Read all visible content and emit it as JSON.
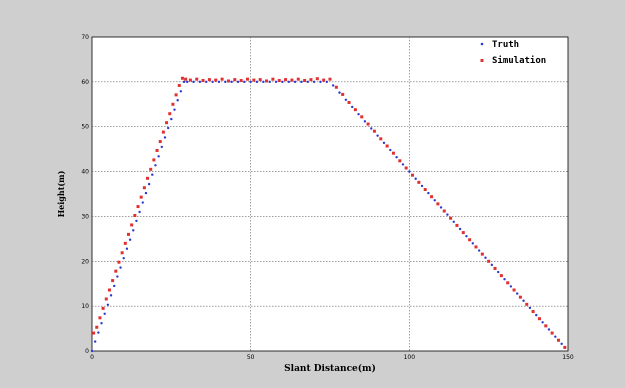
{
  "chart_data": {
    "type": "scatter",
    "title": "",
    "xlabel": "Slant Distance(m)",
    "ylabel": "Height(m)",
    "xlim": [
      0,
      150
    ],
    "ylim": [
      0,
      70
    ],
    "xticks": [
      0,
      50,
      100,
      150
    ],
    "yticks": [
      0,
      10,
      20,
      30,
      40,
      50,
      60,
      70
    ],
    "grid": true,
    "legend_position": "top-right",
    "series": [
      {
        "name": "Truth",
        "color": "#2a3ad0",
        "marker": "dot",
        "x": [
          0,
          1,
          2,
          3,
          4,
          5,
          6,
          7,
          8,
          9,
          10,
          11,
          12,
          13,
          14,
          15,
          16,
          17,
          18,
          19,
          20,
          21,
          22,
          23,
          24,
          25,
          26,
          27,
          28,
          29,
          30,
          32,
          34,
          36,
          38,
          40,
          42,
          44,
          46,
          48,
          50,
          52,
          54,
          56,
          58,
          60,
          62,
          64,
          66,
          68,
          70,
          72,
          74,
          76,
          78,
          80,
          82,
          84,
          86,
          88,
          90,
          92,
          94,
          96,
          98,
          100,
          102,
          104,
          106,
          108,
          110,
          112,
          114,
          116,
          118,
          120,
          122,
          124,
          126,
          128,
          130,
          132,
          134,
          136,
          138,
          140,
          142,
          144,
          146,
          148
        ],
        "y": [
          0,
          2.1,
          4.1,
          6.2,
          8.3,
          10.3,
          12.4,
          14.5,
          16.6,
          18.6,
          20.7,
          22.8,
          24.8,
          26.9,
          29,
          31,
          33.1,
          35.2,
          37.2,
          39.3,
          41.4,
          43.4,
          45.5,
          47.6,
          49.7,
          51.7,
          53.8,
          55.9,
          57.9,
          60,
          60,
          60,
          60,
          60,
          60,
          60,
          60,
          60,
          60,
          60,
          60,
          60,
          60,
          60,
          60,
          60,
          60,
          60,
          60,
          60,
          60,
          60,
          60,
          59.2,
          57.6,
          56,
          54.4,
          52.8,
          51.2,
          49.6,
          48,
          46.4,
          44.8,
          43.2,
          41.6,
          40,
          38.4,
          36.8,
          35.2,
          33.6,
          32,
          30.4,
          28.8,
          27.2,
          25.6,
          24,
          22.4,
          20.8,
          19.2,
          17.6,
          16,
          14.4,
          12.8,
          11.2,
          9.6,
          8,
          6.4,
          4.8,
          3.2,
          1.6
        ]
      },
      {
        "name": "Simulation",
        "color": "#e03030",
        "marker": "square",
        "x": [
          0.5,
          1.5,
          2.5,
          3.5,
          4.5,
          5.5,
          6.5,
          7.5,
          8.5,
          9.5,
          10.5,
          11.5,
          12.5,
          13.5,
          14.5,
          15.5,
          16.5,
          17.5,
          18.5,
          19.5,
          20.5,
          21.5,
          22.5,
          23.5,
          24.5,
          25.5,
          26.5,
          27.5,
          28.5,
          29.5,
          31,
          33,
          35,
          37,
          39,
          41,
          43,
          45,
          47,
          49,
          51,
          53,
          55,
          57,
          59,
          61,
          63,
          65,
          67,
          69,
          71,
          73,
          75,
          77,
          79,
          81,
          83,
          85,
          87,
          89,
          91,
          93,
          95,
          97,
          99,
          101,
          103,
          105,
          107,
          109,
          111,
          113,
          115,
          117,
          119,
          121,
          123,
          125,
          127,
          129,
          131,
          133,
          135,
          137,
          139,
          141,
          143,
          145,
          147,
          149
        ],
        "y": [
          4,
          5.3,
          7.4,
          9.5,
          11.6,
          13.6,
          15.7,
          17.8,
          19.8,
          21.9,
          24,
          26,
          28.1,
          30.2,
          32.2,
          34.3,
          36.4,
          38.5,
          40.5,
          42.6,
          44.7,
          46.7,
          48.8,
          50.9,
          52.9,
          55,
          57.1,
          59.2,
          60.8,
          60.6,
          60.4,
          60.6,
          60.3,
          60.5,
          60.4,
          60.6,
          60.2,
          60.5,
          60.3,
          60.6,
          60.4,
          60.5,
          60.2,
          60.6,
          60.3,
          60.5,
          60.4,
          60.6,
          60.3,
          60.5,
          60.7,
          60.4,
          60.6,
          58.8,
          57.2,
          55.4,
          53.8,
          52.2,
          50.6,
          49,
          47.3,
          45.7,
          44.1,
          42.4,
          40.8,
          39.2,
          37.6,
          36,
          34.4,
          32.8,
          31.2,
          29.6,
          28,
          26.4,
          24.8,
          23.2,
          21.6,
          20,
          18.4,
          16.8,
          15.2,
          13.6,
          12,
          10.4,
          8.8,
          7.2,
          5.6,
          4,
          2.4,
          0.8
        ]
      }
    ]
  }
}
